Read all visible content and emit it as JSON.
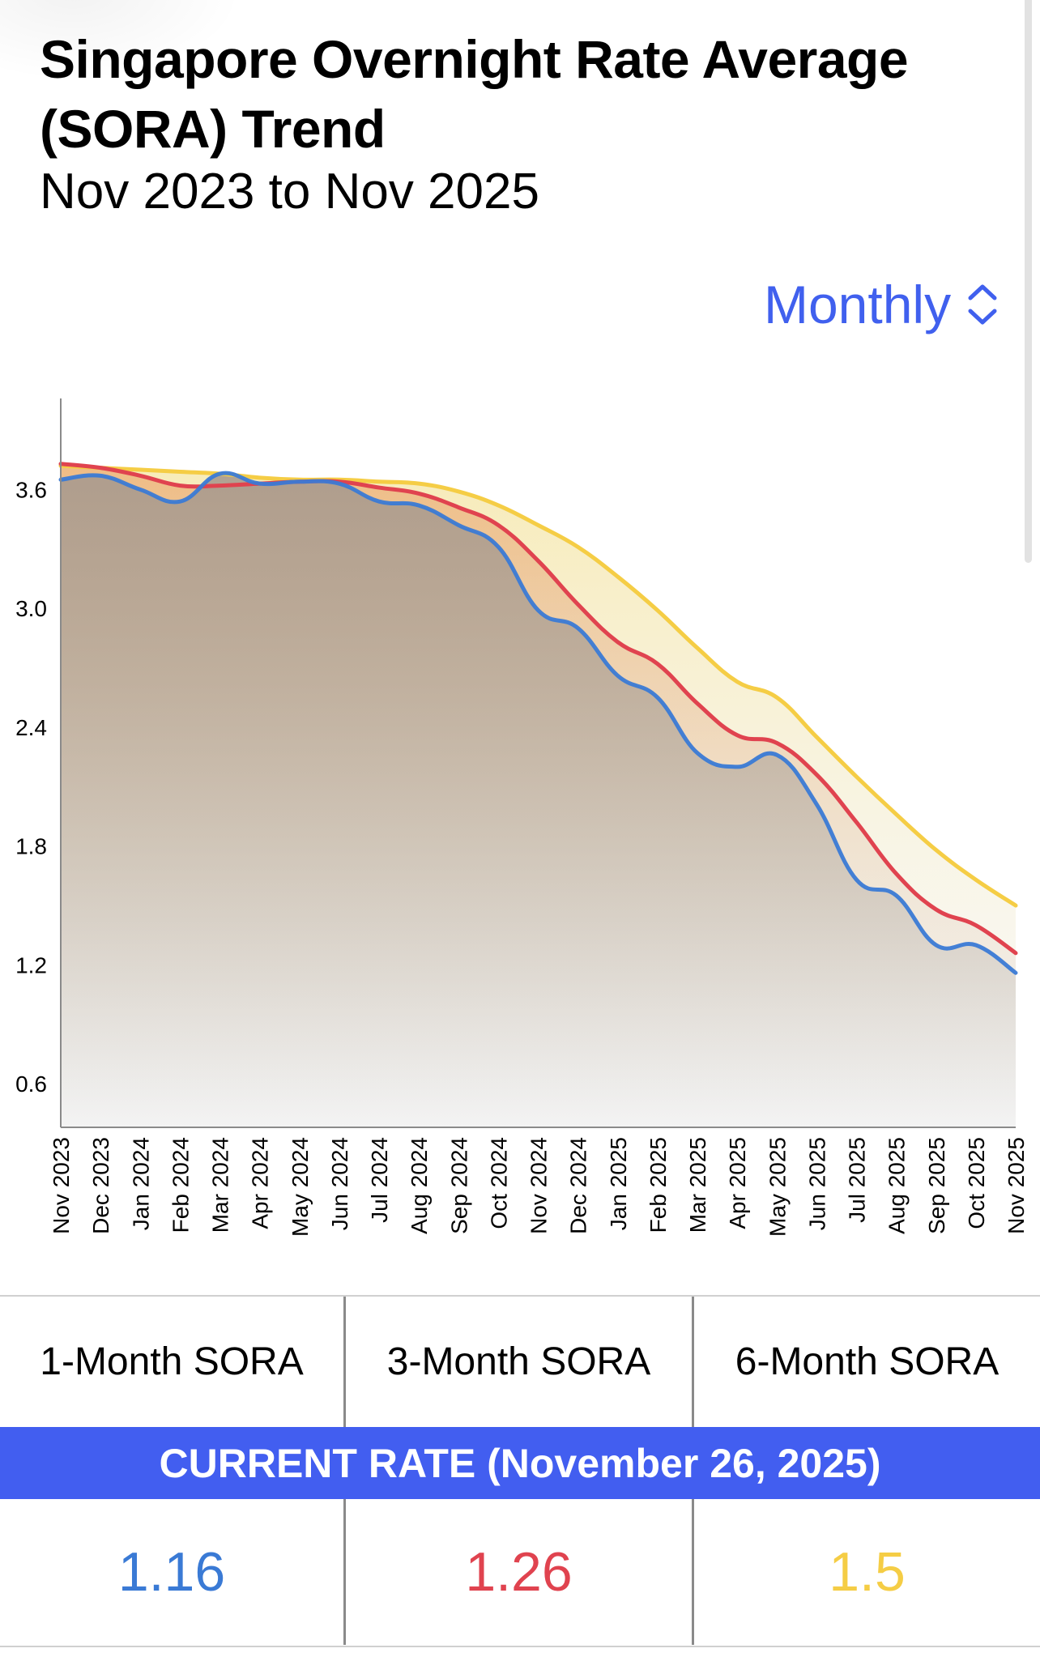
{
  "header": {
    "title": "Singapore Overnight Rate Average (SORA) Trend",
    "subtitle": "Nov 2023 to Nov 2025"
  },
  "period_select": {
    "selected": "Monthly",
    "icon": "chevron-up-down-icon"
  },
  "colors": {
    "accent": "#4060ee",
    "one_month": "#3a7ad5",
    "three_month": "#e0434f",
    "six_month": "#f5cd45",
    "band": "#425ef0"
  },
  "chart_data": {
    "type": "area",
    "title": "Singapore Overnight Rate Average (SORA) Trend",
    "subtitle": "Nov 2023 to Nov 2025",
    "xlabel": "",
    "ylabel": "",
    "ylim": [
      0.38,
      4.06
    ],
    "yticks": [
      "0.6",
      "1.2",
      "1.8",
      "2.4",
      "3.0",
      "3.6"
    ],
    "ytick_values": [
      0.6,
      1.2,
      1.8,
      2.4,
      3.0,
      3.6
    ],
    "grid": false,
    "legend": "none",
    "categories": [
      "Nov 2023",
      "Dec 2023",
      "Jan 2024",
      "Feb 2024",
      "Mar 2024",
      "Apr 2024",
      "May 2024",
      "Jun 2024",
      "Jul 2024",
      "Aug 2024",
      "Sep 2024",
      "Oct 2024",
      "Nov 2024",
      "Dec 2024",
      "Jan 2025",
      "Feb 2025",
      "Mar 2025",
      "Apr 2025",
      "May 2025",
      "Jun 2025",
      "Jul 2025",
      "Aug 2025",
      "Sep 2025",
      "Oct 2025",
      "Nov 2025"
    ],
    "series": [
      {
        "name": "6-Month SORA",
        "color": "#f5cd45",
        "values": [
          3.72,
          3.71,
          3.7,
          3.69,
          3.68,
          3.66,
          3.65,
          3.65,
          3.64,
          3.63,
          3.59,
          3.52,
          3.42,
          3.31,
          3.16,
          2.99,
          2.8,
          2.63,
          2.55,
          2.35,
          2.15,
          1.96,
          1.78,
          1.63,
          1.5
        ]
      },
      {
        "name": "3-Month SORA",
        "color": "#e0434f",
        "values": [
          3.73,
          3.71,
          3.67,
          3.62,
          3.62,
          3.63,
          3.64,
          3.64,
          3.61,
          3.58,
          3.51,
          3.42,
          3.24,
          3.02,
          2.83,
          2.72,
          2.52,
          2.36,
          2.32,
          2.16,
          1.92,
          1.66,
          1.48,
          1.4,
          1.26
        ]
      },
      {
        "name": "1-Month SORA",
        "color": "#3a7ad5",
        "values": [
          3.65,
          3.67,
          3.6,
          3.54,
          3.68,
          3.63,
          3.64,
          3.63,
          3.54,
          3.52,
          3.42,
          3.31,
          2.99,
          2.9,
          2.66,
          2.55,
          2.27,
          2.2,
          2.26,
          2.01,
          1.63,
          1.55,
          1.3,
          1.3,
          1.16
        ]
      }
    ]
  },
  "rates_table": {
    "headers": [
      "1-Month SORA",
      "3-Month SORA",
      "6-Month SORA"
    ],
    "banner": "CURRENT RATE (November 26, 2025)",
    "values": [
      "1.16",
      "1.26",
      "1.5"
    ]
  }
}
